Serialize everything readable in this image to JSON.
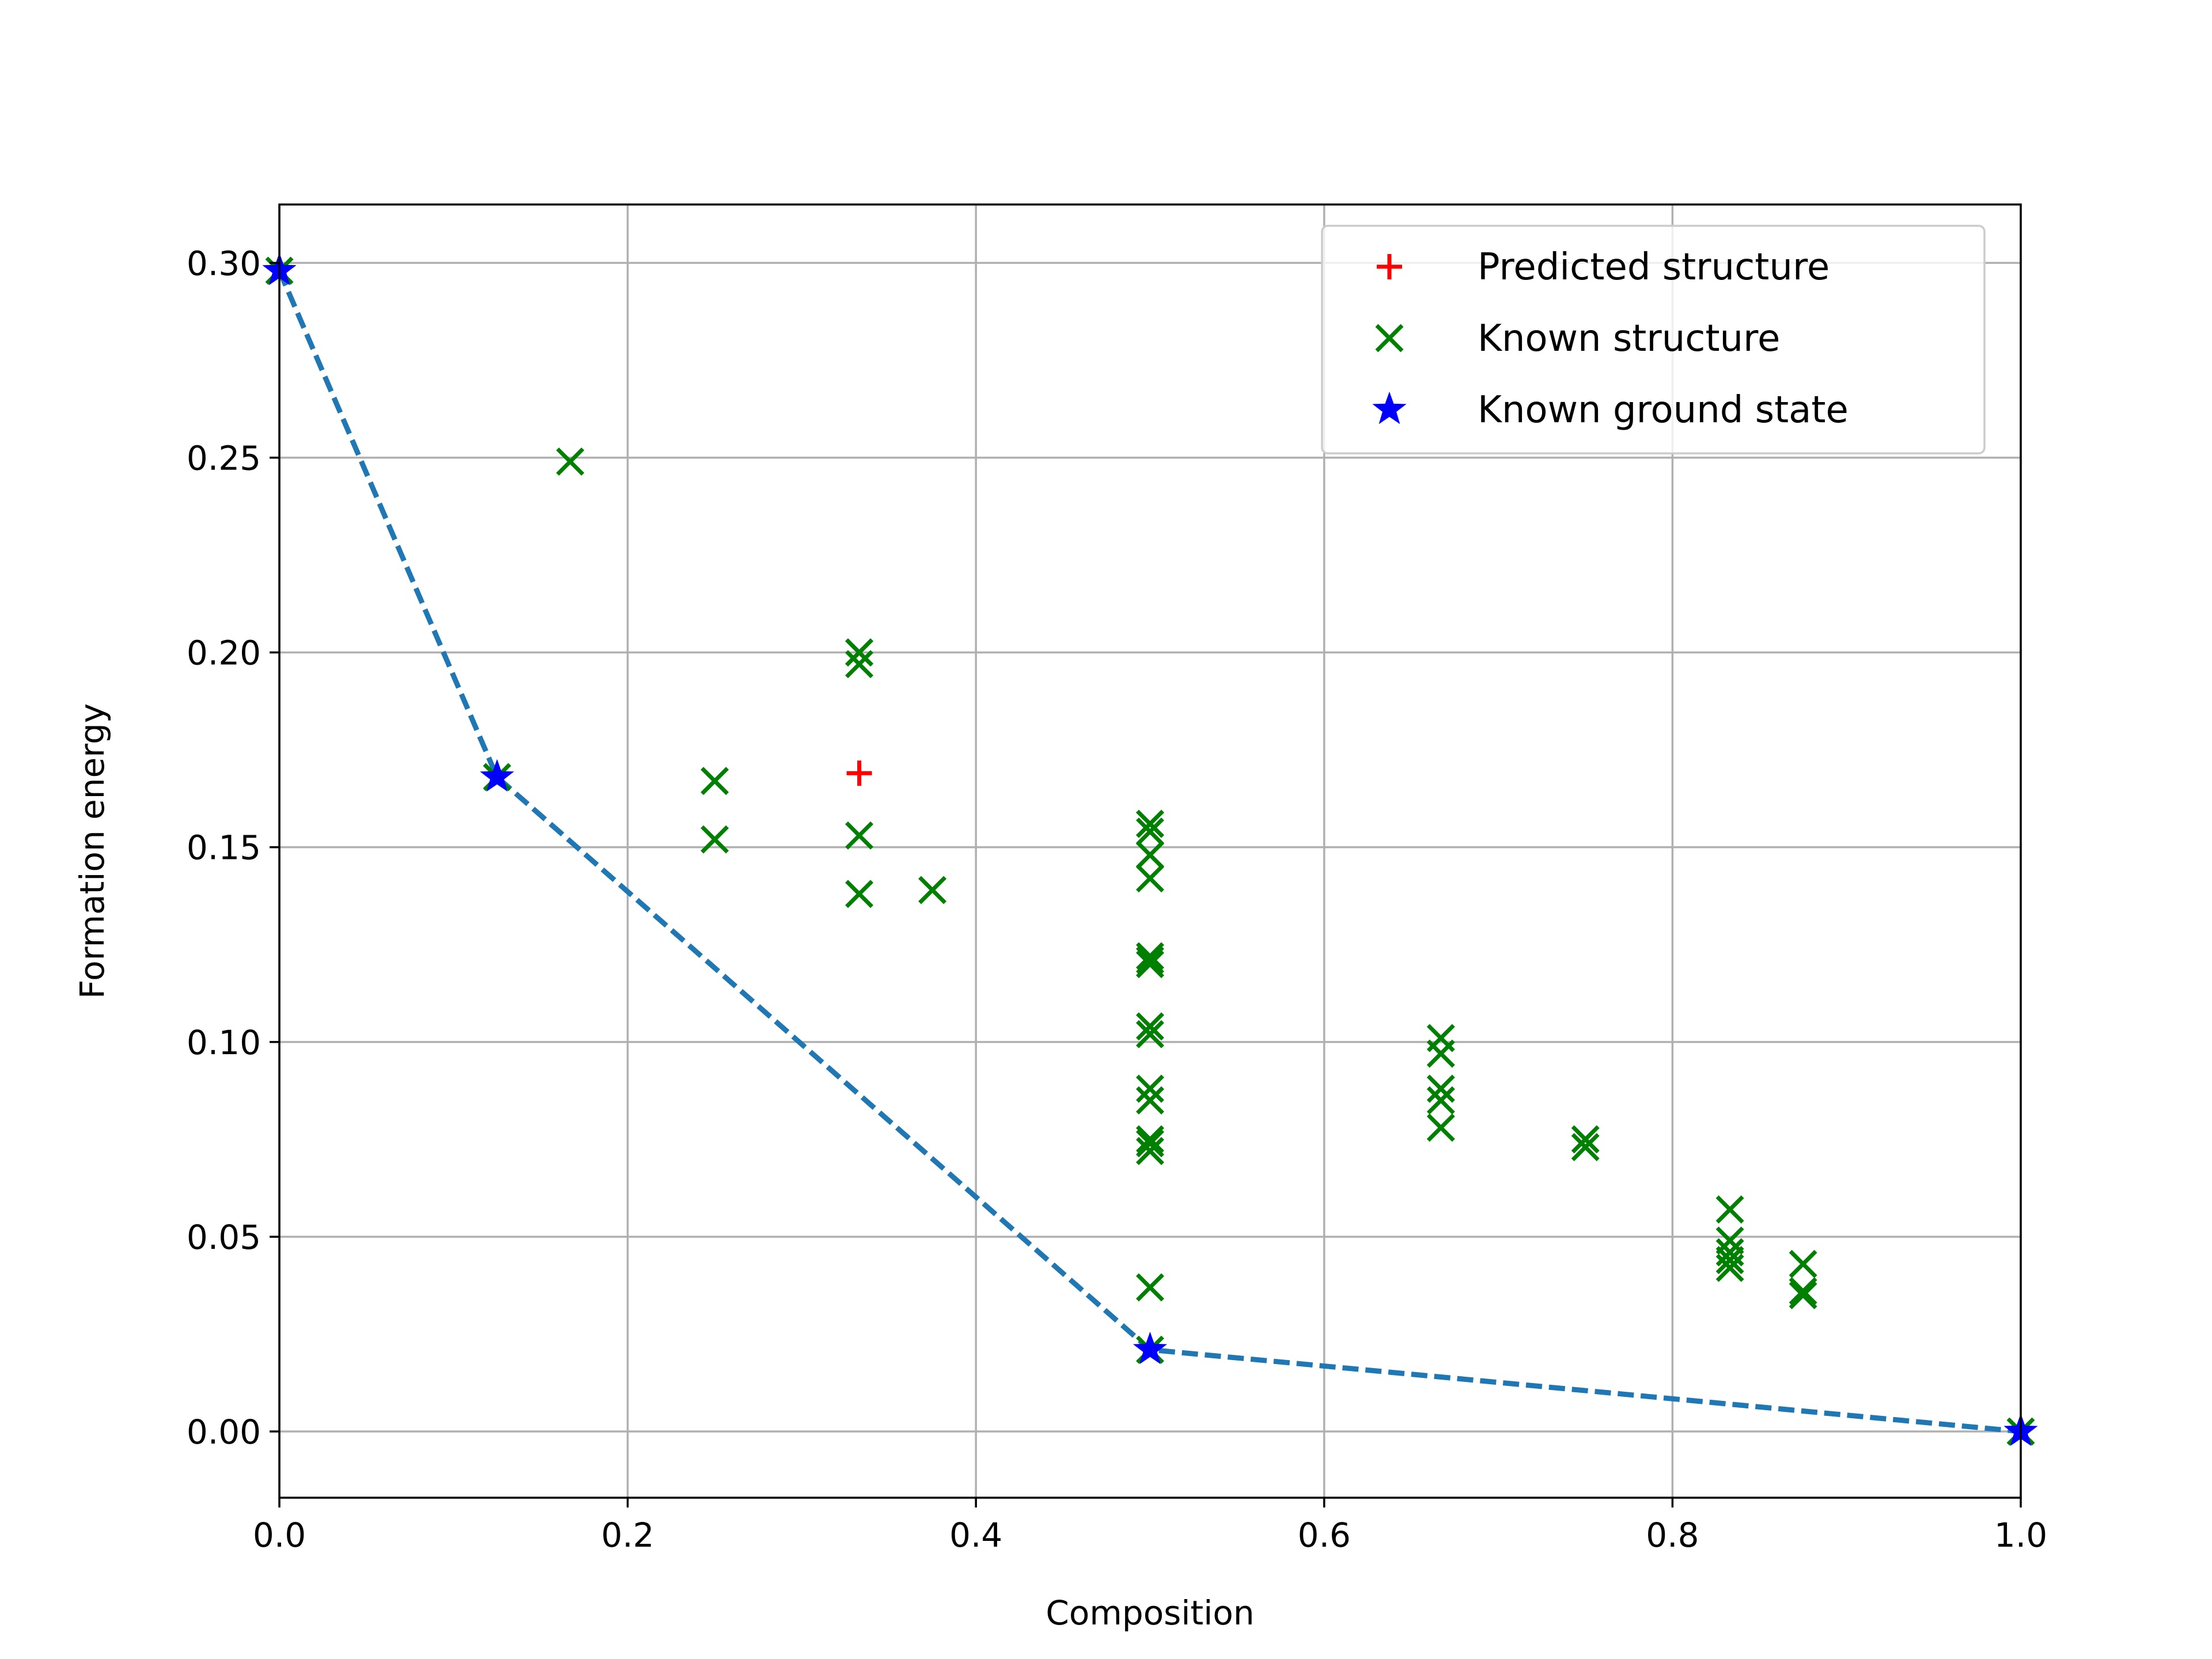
{
  "chart_data": {
    "type": "scatter",
    "title": "",
    "xlabel": "Composition",
    "ylabel": "Formation energy",
    "xlim": [
      0.0,
      1.0
    ],
    "ylim": [
      -0.017,
      0.315
    ],
    "xticks": [
      0.0,
      0.2,
      0.4,
      0.6,
      0.8,
      1.0
    ],
    "xtick_labels": [
      "0.0",
      "0.2",
      "0.4",
      "0.6",
      "0.8",
      "1.0"
    ],
    "yticks": [
      0.0,
      0.05,
      0.1,
      0.15,
      0.2,
      0.25,
      0.3
    ],
    "ytick_labels": [
      "0.00",
      "0.05",
      "0.10",
      "0.15",
      "0.20",
      "0.25",
      "0.30"
    ],
    "grid": true,
    "legend_placement": "top-right",
    "legend": [
      {
        "label": "Predicted structure",
        "marker": "plus",
        "color": "#ff0000"
      },
      {
        "label": "Known structure",
        "marker": "x",
        "color": "#008000"
      },
      {
        "label": "Known ground state",
        "marker": "star",
        "color": "#0000ff"
      }
    ],
    "hull_line": {
      "color": "#1f77b4",
      "style": "dashed",
      "x": [
        0.0,
        0.125,
        0.5,
        1.0
      ],
      "y": [
        0.298,
        0.168,
        0.021,
        0.0
      ]
    },
    "series": [
      {
        "name": "Predicted structure",
        "marker": "plus",
        "color": "#ff0000",
        "x": [
          0.333
        ],
        "y": [
          0.169
        ]
      },
      {
        "name": "Known structure",
        "marker": "x",
        "color": "#008000",
        "x": [
          0.0,
          0.125,
          0.167,
          0.25,
          0.25,
          0.333,
          0.333,
          0.333,
          0.333,
          0.333,
          0.375,
          0.5,
          0.5,
          0.5,
          0.5,
          0.5,
          0.5,
          0.5,
          0.5,
          0.5,
          0.5,
          0.5,
          0.5,
          0.5,
          0.5,
          0.5,
          0.5,
          0.5,
          0.667,
          0.667,
          0.667,
          0.667,
          0.667,
          0.75,
          0.75,
          0.833,
          0.833,
          0.833,
          0.833,
          0.833,
          0.875,
          0.875,
          0.875,
          1.0
        ],
        "y": [
          0.298,
          0.168,
          0.249,
          0.167,
          0.152,
          0.2,
          0.197,
          0.153,
          0.138,
          0.2,
          0.139,
          0.156,
          0.154,
          0.148,
          0.142,
          0.122,
          0.12,
          0.104,
          0.102,
          0.088,
          0.085,
          0.075,
          0.074,
          0.072,
          0.037,
          0.021,
          0.156,
          0.121,
          0.101,
          0.097,
          0.088,
          0.085,
          0.078,
          0.075,
          0.073,
          0.057,
          0.049,
          0.046,
          0.044,
          0.042,
          0.043,
          0.036,
          0.035,
          0.0
        ]
      },
      {
        "name": "Known ground state",
        "marker": "star",
        "color": "#0000ff",
        "x": [
          0.0,
          0.125,
          0.5,
          1.0
        ],
        "y": [
          0.298,
          0.168,
          0.021,
          0.0
        ]
      }
    ]
  }
}
